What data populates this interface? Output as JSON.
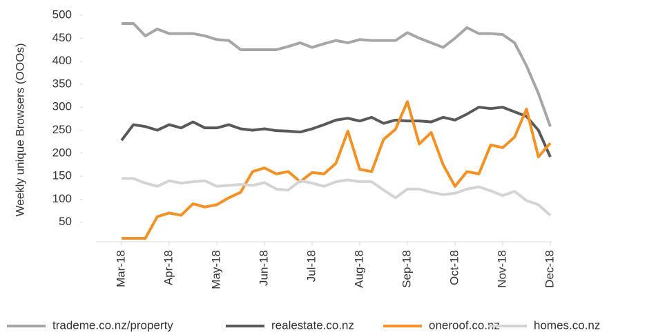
{
  "chart_data": {
    "type": "line",
    "y_label": "Weekly unique Browsers (OOOs)",
    "x": [
      0,
      0.25,
      0.5,
      0.75,
      1,
      1.25,
      1.5,
      1.75,
      2,
      2.25,
      2.5,
      2.75,
      3,
      3.25,
      3.5,
      3.75,
      4,
      4.25,
      4.5,
      4.75,
      5,
      5.25,
      5.5,
      5.75,
      6,
      6.25,
      6.5,
      6.75,
      7,
      7.25,
      7.5,
      7.75,
      8,
      8.25,
      8.5,
      8.75,
      9
    ],
    "xlim": [
      0,
      9
    ],
    "xticks": [
      {
        "value": 0,
        "label": "Mar-18"
      },
      {
        "value": 1,
        "label": "Apr-18"
      },
      {
        "value": 2,
        "label": "May-18"
      },
      {
        "value": 3,
        "label": "Jun-18"
      },
      {
        "value": 4,
        "label": "Jul-18"
      },
      {
        "value": 5,
        "label": "Aug-18"
      },
      {
        "value": 6,
        "label": "Sep-18"
      },
      {
        "value": 7,
        "label": "Oct-18"
      },
      {
        "value": 8,
        "label": "Nov-18"
      },
      {
        "value": 9,
        "label": "Dec-18"
      }
    ],
    "ylim": [
      0,
      500
    ],
    "yticks": [
      50,
      100,
      150,
      200,
      250,
      300,
      350,
      400,
      450,
      500
    ],
    "legend": "bottom",
    "series": [
      {
        "name": "trademe.co.nz/property",
        "color": "#a6a6a6",
        "values": [
          482,
          482,
          455,
          470,
          460,
          460,
          460,
          455,
          447,
          445,
          425,
          425,
          425,
          425,
          432,
          440,
          430,
          438,
          445,
          440,
          447,
          445,
          445,
          445,
          462,
          450,
          440,
          430,
          450,
          473,
          460,
          460,
          458,
          440,
          390,
          330,
          258
        ]
      },
      {
        "name": "realestate.co.nz",
        "color": "#595959",
        "values": [
          228,
          262,
          258,
          250,
          262,
          255,
          268,
          255,
          255,
          262,
          253,
          250,
          253,
          249,
          248,
          246,
          253,
          262,
          272,
          276,
          270,
          278,
          265,
          272,
          270,
          270,
          268,
          278,
          272,
          285,
          300,
          297,
          300,
          290,
          280,
          250,
          192
        ]
      },
      {
        "name": "oneroof.co.nz",
        "color": "#f39125",
        "values": [
          15,
          15,
          15,
          62,
          70,
          65,
          90,
          83,
          88,
          103,
          115,
          160,
          168,
          155,
          160,
          138,
          158,
          155,
          178,
          248,
          165,
          160,
          230,
          252,
          312,
          220,
          245,
          175,
          128,
          160,
          155,
          218,
          212,
          235,
          296,
          192,
          222
        ]
      },
      {
        "name": "homes.co.nz",
        "color": "#d4d4d4",
        "values": [
          145,
          145,
          135,
          128,
          140,
          135,
          138,
          140,
          128,
          130,
          132,
          130,
          136,
          122,
          120,
          140,
          135,
          128,
          138,
          142,
          138,
          138,
          120,
          103,
          122,
          122,
          115,
          110,
          113,
          122,
          127,
          118,
          108,
          117,
          97,
          88,
          65
        ]
      }
    ]
  }
}
